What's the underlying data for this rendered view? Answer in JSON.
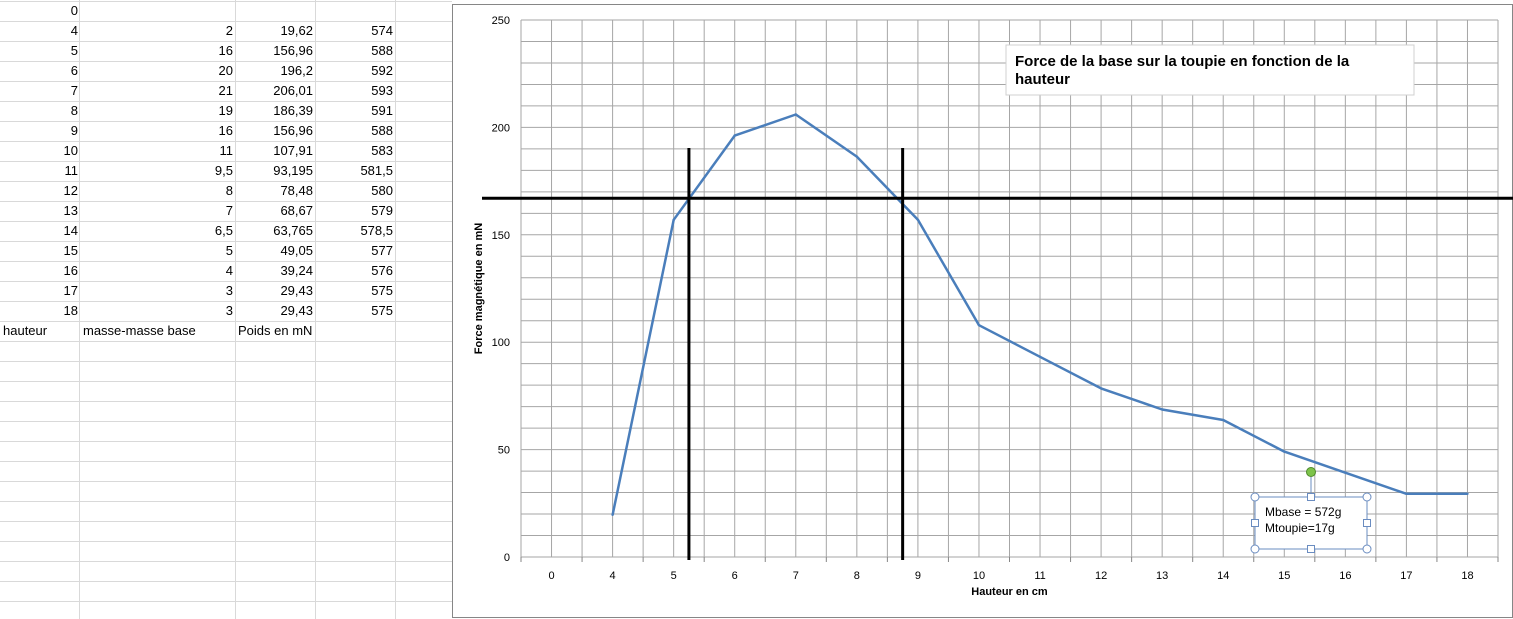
{
  "sheet": {
    "headers": [
      "hauteur",
      "masse-masse base",
      "Poids en mN"
    ],
    "rows": [
      [
        "0",
        "",
        "",
        ""
      ],
      [
        "4",
        "2",
        "19,62",
        "574"
      ],
      [
        "5",
        "16",
        "156,96",
        "588"
      ],
      [
        "6",
        "20",
        "196,2",
        "592"
      ],
      [
        "7",
        "21",
        "206,01",
        "593"
      ],
      [
        "8",
        "19",
        "186,39",
        "591"
      ],
      [
        "9",
        "16",
        "156,96",
        "588"
      ],
      [
        "10",
        "11",
        "107,91",
        "583"
      ],
      [
        "11",
        "9,5",
        "93,195",
        "581,5"
      ],
      [
        "12",
        "8",
        "78,48",
        "580"
      ],
      [
        "13",
        "7",
        "68,67",
        "579"
      ],
      [
        "14",
        "6,5",
        "63,765",
        "578,5"
      ],
      [
        "15",
        "5",
        "49,05",
        "577"
      ],
      [
        "16",
        "4",
        "39,24",
        "576"
      ],
      [
        "17",
        "3",
        "29,43",
        "575"
      ],
      [
        "18",
        "3",
        "29,43",
        "575"
      ]
    ]
  },
  "chart_data": {
    "type": "line",
    "title": "Force de la base sur la toupie en fonction de la hauteur",
    "title_lines": [
      "Force de la base sur la toupie en fonction de la",
      "hauteur"
    ],
    "xlabel": "Hauteur en cm",
    "ylabel": "Force magnétique en mN",
    "categories": [
      "0",
      "4",
      "5",
      "6",
      "7",
      "8",
      "9",
      "10",
      "11",
      "12",
      "13",
      "14",
      "15",
      "16",
      "17",
      "18"
    ],
    "series": [
      {
        "values": [
          null,
          19.62,
          156.96,
          196.2,
          206.01,
          186.39,
          156.96,
          107.91,
          93.195,
          78.48,
          68.67,
          63.765,
          49.05,
          39.24,
          29.43,
          29.43
        ]
      }
    ],
    "ylim": [
      0,
      250
    ],
    "yticks": [
      "0",
      "50",
      "100",
      "150",
      "200",
      "250"
    ],
    "grid": true,
    "annotation_lines": [
      {
        "orientation": "horizontal",
        "y": 167
      },
      {
        "orientation": "vertical",
        "x": 5.25
      },
      {
        "orientation": "vertical",
        "x": 8.75
      }
    ],
    "textbox": [
      "Mbase = 572g",
      "Mtoupie=17g"
    ]
  },
  "colors": {
    "line": "#4a7ebb",
    "grid": "#a6a6a6",
    "annotation": "#000000"
  }
}
